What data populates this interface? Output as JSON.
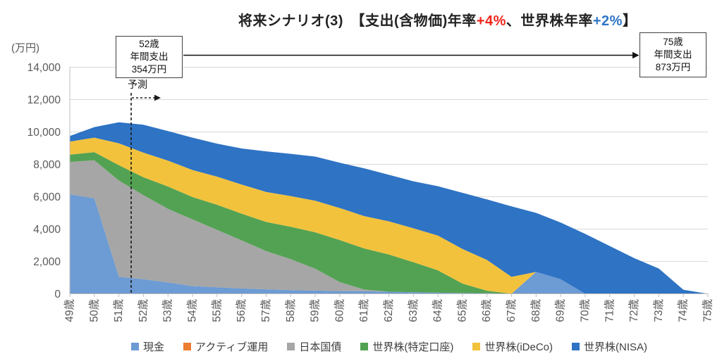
{
  "title": {
    "main": "将来シナリオ(3)",
    "spacer": "　",
    "bracket_prefix": "【支出(含物価)年率",
    "highlight_red": "+4%",
    "middle": "、世界株年率",
    "highlight_blue": "+2%",
    "bracket_suffix": "】",
    "red_color": "#f0241b",
    "blue_color": "#2e75c6"
  },
  "y_axis_unit": "(万円)",
  "annotations": {
    "start_box": {
      "lines": [
        "52歳",
        "年間支出",
        "354万円"
      ]
    },
    "end_box": {
      "lines": [
        "75歳",
        "年間支出",
        "873万円"
      ]
    },
    "forecast_label": "予測"
  },
  "chart_data": {
    "type": "area",
    "stacked": true,
    "grid": true,
    "legend_position": "bottom",
    "ylim": [
      0,
      14000
    ],
    "y_tick_step": 2000,
    "y_tick_labels": [
      "0",
      "2,000",
      "4,000",
      "6,000",
      "8,000",
      "10,000",
      "12,000",
      "14,000"
    ],
    "x_labels": [
      "49歳",
      "50歳",
      "51歳",
      "52歳",
      "53歳",
      "54歳",
      "55歳",
      "56歳",
      "57歳",
      "58歳",
      "59歳",
      "60歳",
      "61歳",
      "62歳",
      "63歳",
      "64歳",
      "65歳",
      "66歳",
      "67歳",
      "68歳",
      "69歳",
      "70歳",
      "71歳",
      "72歳",
      "73歳",
      "74歳",
      "75歳"
    ],
    "forecast_line": {
      "position": 2.5,
      "label": "予測"
    },
    "series": [
      {
        "key": "cash",
        "name": "現金",
        "color": "#6d9bd3",
        "values": [
          6150,
          5900,
          1050,
          900,
          700,
          480,
          400,
          330,
          280,
          230,
          200,
          170,
          160,
          130,
          100,
          70,
          50,
          40,
          0,
          1350,
          900,
          0,
          0,
          0,
          0,
          0,
          0
        ]
      },
      {
        "key": "active-fund",
        "name": "アクティブ運用",
        "color": "#ed7d31",
        "values": [
          0,
          0,
          0,
          0,
          0,
          0,
          0,
          0,
          0,
          0,
          0,
          0,
          0,
          0,
          0,
          0,
          0,
          0,
          0,
          0,
          0,
          0,
          0,
          0,
          0,
          0,
          0
        ]
      },
      {
        "key": "jgb",
        "name": "日本国債",
        "color": "#a6a6a6",
        "values": [
          2000,
          2350,
          5950,
          5200,
          4550,
          4120,
          3550,
          2970,
          2360,
          1910,
          1350,
          550,
          100,
          0,
          0,
          0,
          0,
          0,
          0,
          0,
          0,
          0,
          0,
          0,
          0,
          0,
          0
        ]
      },
      {
        "key": "world-stock-taxable",
        "name": "世界株(特定口座)",
        "color": "#53a253",
        "values": [
          450,
          500,
          950,
          1100,
          1380,
          1380,
          1550,
          1650,
          1800,
          2000,
          2250,
          2600,
          2540,
          2300,
          1850,
          1380,
          580,
          150,
          0,
          0,
          0,
          0,
          0,
          0,
          0,
          0,
          0
        ]
      },
      {
        "key": "world-stock-ideco",
        "name": "世界株(iDeCo)",
        "color": "#f2c23d",
        "values": [
          800,
          900,
          1350,
          1520,
          1600,
          1670,
          1740,
          1800,
          1850,
          1900,
          1950,
          1980,
          2000,
          2050,
          2100,
          2150,
          2140,
          1900,
          1050,
          0,
          0,
          0,
          0,
          0,
          0,
          0,
          0
        ]
      },
      {
        "key": "world-stock-nisa",
        "name": "世界株(NISA)",
        "color": "#2e73c4",
        "values": [
          350,
          650,
          1300,
          1730,
          1820,
          2000,
          2040,
          2230,
          2510,
          2610,
          2730,
          2800,
          2950,
          2870,
          2900,
          3050,
          3470,
          3740,
          4350,
          3650,
          3500,
          3700,
          2950,
          2200,
          1560,
          250,
          0
        ]
      }
    ]
  }
}
